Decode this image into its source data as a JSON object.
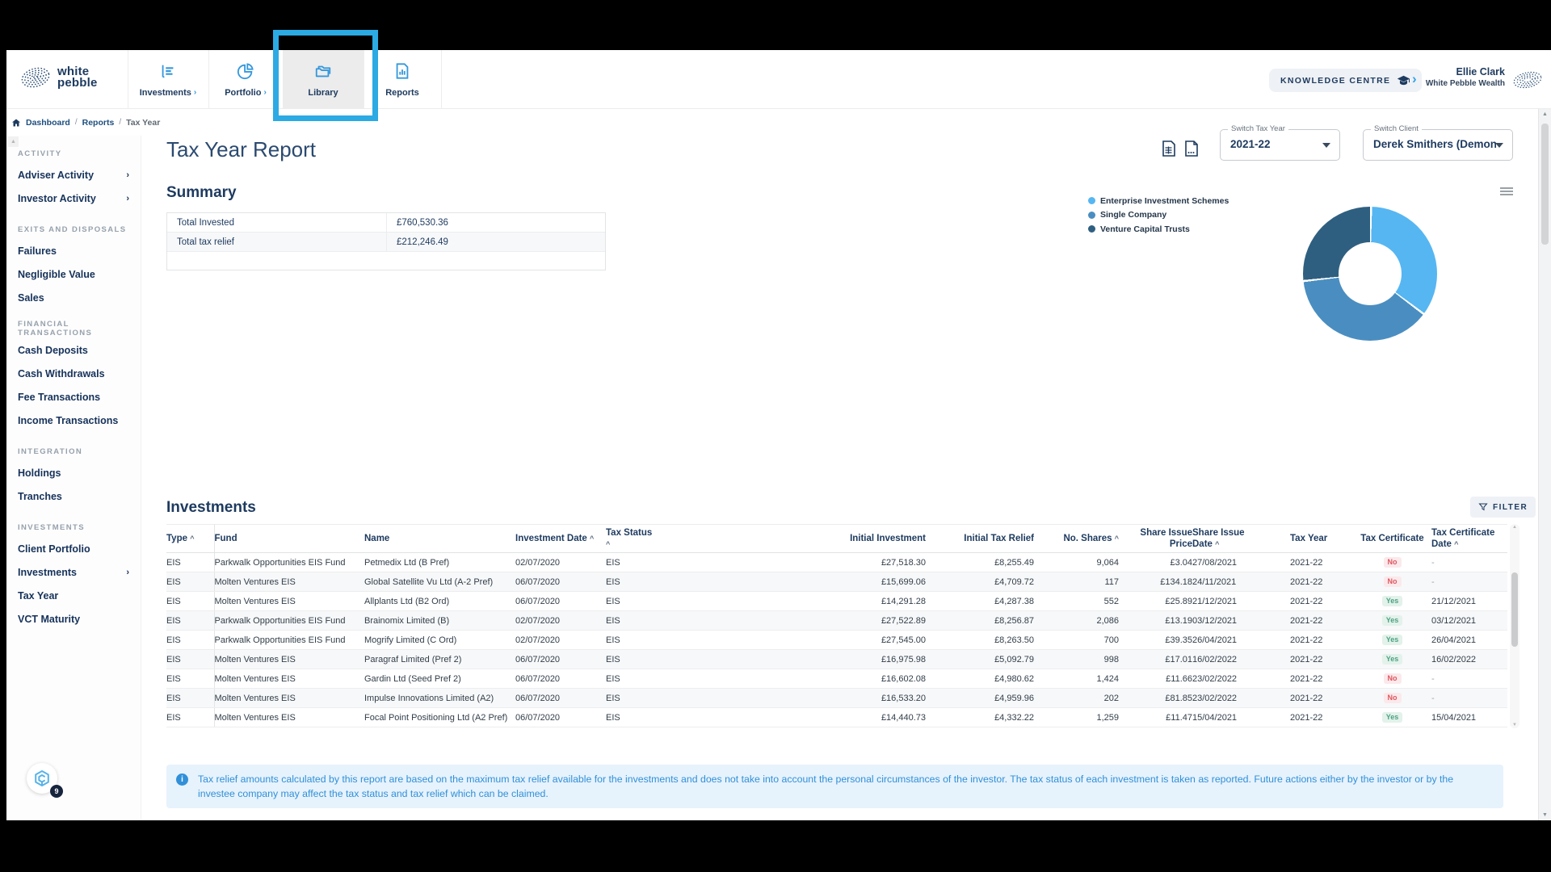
{
  "header": {
    "logo": {
      "line1": "white",
      "line2": "pebble"
    },
    "nav": [
      {
        "id": "investments",
        "label": "Investments",
        "chevron": true,
        "highlighted": false,
        "icon": "bar-chart-icon"
      },
      {
        "id": "portfolio",
        "label": "Portfolio",
        "chevron": true,
        "highlighted": false,
        "icon": "pie-chart-icon"
      },
      {
        "id": "library",
        "label": "Library",
        "chevron": false,
        "highlighted": true,
        "icon": "folder-icon"
      },
      {
        "id": "reports",
        "label": "Reports",
        "chevron": false,
        "highlighted": false,
        "icon": "document-icon"
      }
    ],
    "knowledge_centre_label": "KNOWLEDGE CENTRE",
    "user": {
      "name": "Ellie Clark",
      "org": "White Pebble Wealth"
    }
  },
  "breadcrumb": {
    "items": [
      "Dashboard",
      "Reports"
    ],
    "current": "Tax Year"
  },
  "sidebar": {
    "sections": [
      {
        "label": "ACTIVITY",
        "items": [
          {
            "label": "Adviser Activity",
            "chevron": true
          },
          {
            "label": "Investor Activity",
            "chevron": true
          }
        ]
      },
      {
        "label": "EXITS AND DISPOSALS",
        "items": [
          {
            "label": "Failures",
            "chevron": false
          },
          {
            "label": "Negligible Value",
            "chevron": false
          },
          {
            "label": "Sales",
            "chevron": false
          }
        ]
      },
      {
        "label": "FINANCIAL TRANSACTIONS",
        "items": [
          {
            "label": "Cash Deposits",
            "chevron": false
          },
          {
            "label": "Cash Withdrawals",
            "chevron": false
          },
          {
            "label": "Fee Transactions",
            "chevron": false
          },
          {
            "label": "Income Transactions",
            "chevron": false
          }
        ]
      },
      {
        "label": "INTEGRATION",
        "items": [
          {
            "label": "Holdings",
            "chevron": false
          },
          {
            "label": "Tranches",
            "chevron": false
          }
        ]
      },
      {
        "label": "INVESTMENTS",
        "items": [
          {
            "label": "Client Portfolio",
            "chevron": false
          },
          {
            "label": "Investments",
            "chevron": true
          },
          {
            "label": "Tax Year",
            "chevron": false
          },
          {
            "label": "VCT Maturity",
            "chevron": false
          }
        ]
      }
    ]
  },
  "page": {
    "title": "Tax Year Report",
    "switch_tax_year": {
      "label": "Switch Tax Year",
      "value": "2021-22"
    },
    "switch_client": {
      "label": "Switch Client",
      "value": "Derek Smithers (Demonst"
    }
  },
  "summary": {
    "heading": "Summary",
    "rows": [
      {
        "label": "Total Invested",
        "value": "£760,530.36"
      },
      {
        "label": "Total tax relief",
        "value": "£212,246.49"
      }
    ]
  },
  "chart_data": {
    "type": "pie",
    "donut": true,
    "labels": [
      "Enterprise Investment Schemes",
      "Single Company",
      "Venture Capital Trusts"
    ],
    "values": [
      35,
      38,
      27
    ],
    "colors": [
      "#56b6f2",
      "#4a8ec1",
      "#2f5f80"
    ],
    "legend_position": "left",
    "title": ""
  },
  "investments": {
    "heading": "Investments",
    "filter_label": "FILTER",
    "columns": [
      {
        "lines": [
          "Type ^"
        ]
      },
      {
        "lines": [
          "Fund"
        ]
      },
      {
        "lines": [
          "Name"
        ]
      },
      {
        "lines": [
          "Investment Date ^"
        ]
      },
      {
        "lines": [
          "Tax Status",
          "^"
        ]
      },
      {
        "lines": [
          "Initial Investment"
        ]
      },
      {
        "lines": [
          "Initial Tax Relief"
        ]
      },
      {
        "lines": [
          "No. Shares ^"
        ]
      },
      {
        "lines": [
          "Share Issue",
          "Price"
        ]
      },
      {
        "lines": [
          "Share Issue",
          "Date ^"
        ]
      },
      {
        "lines": [
          "Tax Year"
        ]
      },
      {
        "lines": [
          "Tax Certificate"
        ]
      },
      {
        "lines": [
          "Tax Certificate",
          "Date ^"
        ]
      }
    ],
    "rows": [
      [
        "EIS",
        "Parkwalk Opportunities EIS Fund",
        "Petmedix Ltd (B Pref)",
        "02/07/2020",
        "EIS",
        "£27,518.30",
        "£8,255.49",
        "9,064",
        "£3.04",
        "27/08/2021",
        "2021-22",
        "No",
        "-"
      ],
      [
        "EIS",
        "Molten Ventures EIS",
        "Global Satellite Vu Ltd (A-2 Pref)",
        "06/07/2020",
        "EIS",
        "£15,699.06",
        "£4,709.72",
        "117",
        "£134.18",
        "24/11/2021",
        "2021-22",
        "No",
        "-"
      ],
      [
        "EIS",
        "Molten Ventures EIS",
        "Allplants Ltd (B2 Ord)",
        "06/07/2020",
        "EIS",
        "£14,291.28",
        "£4,287.38",
        "552",
        "£25.89",
        "21/12/2021",
        "2021-22",
        "Yes",
        "21/12/2021"
      ],
      [
        "EIS",
        "Parkwalk Opportunities EIS Fund",
        "Brainomix Limited (B)",
        "02/07/2020",
        "EIS",
        "£27,522.89",
        "£8,256.87",
        "2,086",
        "£13.19",
        "03/12/2021",
        "2021-22",
        "Yes",
        "03/12/2021"
      ],
      [
        "EIS",
        "Parkwalk Opportunities EIS Fund",
        "Mogrify Limited (C Ord)",
        "02/07/2020",
        "EIS",
        "£27,545.00",
        "£8,263.50",
        "700",
        "£39.35",
        "26/04/2021",
        "2021-22",
        "Yes",
        "26/04/2021"
      ],
      [
        "EIS",
        "Molten Ventures EIS",
        "Paragraf Limited (Pref 2)",
        "06/07/2020",
        "EIS",
        "£16,975.98",
        "£5,092.79",
        "998",
        "£17.01",
        "16/02/2022",
        "2021-22",
        "Yes",
        "16/02/2022"
      ],
      [
        "EIS",
        "Molten Ventures EIS",
        "Gardin Ltd (Seed Pref 2)",
        "06/07/2020",
        "EIS",
        "£16,602.08",
        "£4,980.62",
        "1,424",
        "£11.66",
        "23/02/2022",
        "2021-22",
        "No",
        "-"
      ],
      [
        "EIS",
        "Molten Ventures EIS",
        "Impulse Innovations Limited (A2)",
        "06/07/2020",
        "EIS",
        "£16,533.20",
        "£4,959.96",
        "202",
        "£81.85",
        "23/02/2022",
        "2021-22",
        "No",
        "-"
      ],
      [
        "EIS",
        "Molten Ventures EIS",
        "Focal Point Positioning Ltd (A2 Pref)",
        "06/07/2020",
        "EIS",
        "£14,440.73",
        "£4,332.22",
        "1,259",
        "£11.47",
        "15/04/2021",
        "2021-22",
        "Yes",
        "15/04/2021"
      ]
    ]
  },
  "note": {
    "text": "Tax relief amounts calculated by this report are based on the maximum tax relief available for the investments and does not take into account the personal circumstances of the investor. The tax status of each investment is taken as reported. Future actions either by the investor or by the investee company may affect the tax status and tax relief which can be claimed."
  },
  "widget": {
    "badge": "9"
  }
}
